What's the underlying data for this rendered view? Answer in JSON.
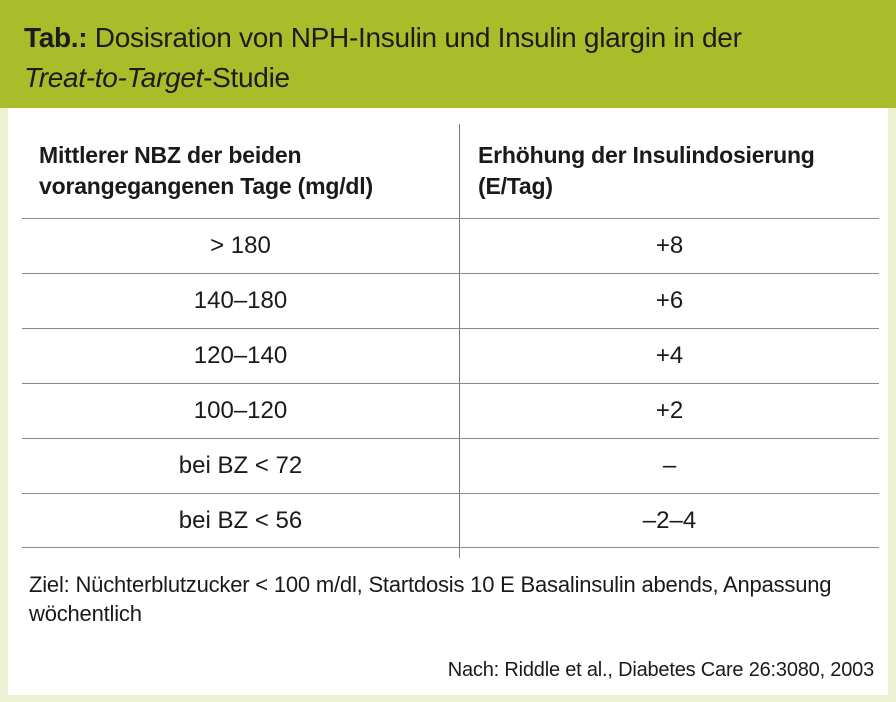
{
  "header": {
    "label": "Tab.:",
    "title_line1": "Dosisration von NPH-Insulin und Insulin glargin in der",
    "title_line2_italic": "Treat-to-Target",
    "title_line2_rest": "-Studie"
  },
  "table": {
    "col1_header_line1": "Mittlerer NBZ der beiden",
    "col1_header_line2": "vorangegangenen Tage (mg/dl)",
    "col2_header_line1": "Erhöhung der Insulindosierung",
    "col2_header_line2": "(E/Tag)",
    "rows": [
      {
        "nbz": "> 180",
        "change": "+8"
      },
      {
        "nbz": "140–180",
        "change": "+6"
      },
      {
        "nbz": "120–140",
        "change": "+4"
      },
      {
        "nbz": "100–120",
        "change": "+2"
      },
      {
        "nbz": "bei BZ < 72",
        "change": "–"
      },
      {
        "nbz": "bei BZ < 56",
        "change": "–2–4"
      }
    ]
  },
  "note": "Ziel: Nüchterblutzucker < 100 m/dl, Startdosis 10 E Basalinsulin abends, Anpassung wöchentlich",
  "source": "Nach: Riddle et al., Diabetes Care 26:3080, 2003",
  "colors": {
    "header_bg": "#a9bd2b",
    "page_bg": "#eef0d2",
    "panel_bg": "#ffffff"
  }
}
